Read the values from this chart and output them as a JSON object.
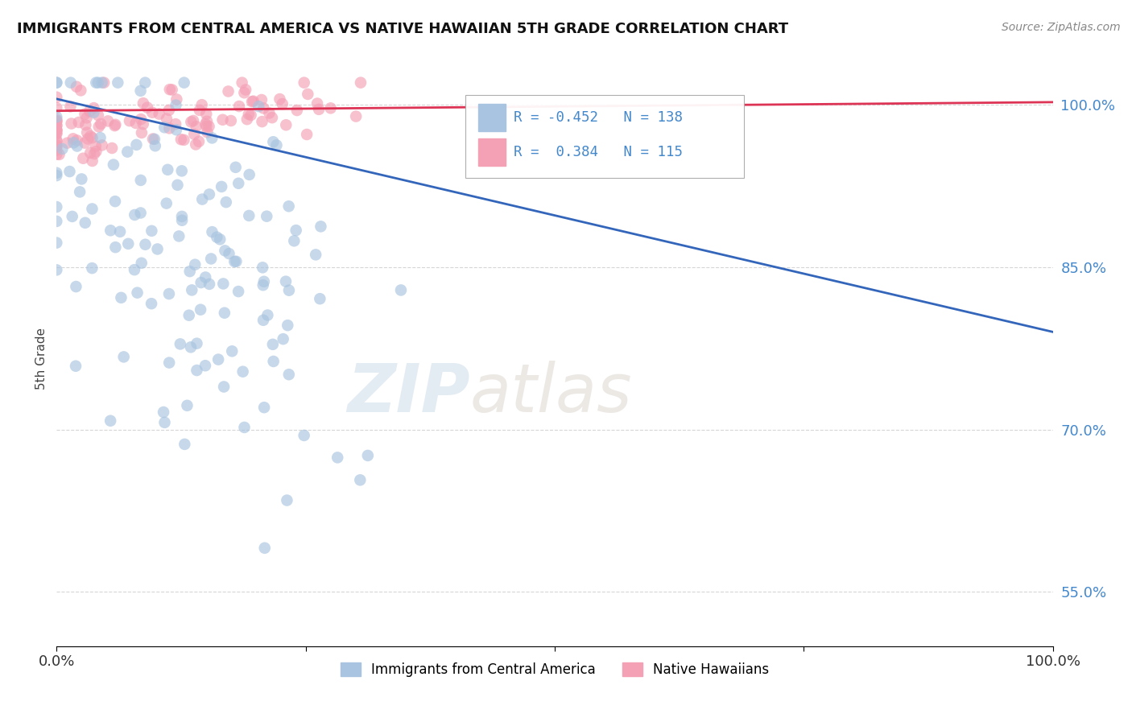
{
  "title": "IMMIGRANTS FROM CENTRAL AMERICA VS NATIVE HAWAIIAN 5TH GRADE CORRELATION CHART",
  "source_text": "Source: ZipAtlas.com",
  "ylabel": "5th Grade",
  "xlim": [
    0.0,
    1.0
  ],
  "ylim": [
    0.5,
    1.03
  ],
  "yticks": [
    0.55,
    0.7,
    0.85,
    1.0
  ],
  "ytick_labels": [
    "55.0%",
    "70.0%",
    "85.0%",
    "100.0%"
  ],
  "xticks": [
    0.0,
    0.25,
    0.5,
    0.75,
    1.0
  ],
  "xtick_labels": [
    "0.0%",
    "",
    "",
    "",
    "100.0%"
  ],
  "legend_r_blue": "-0.452",
  "legend_n_blue": "138",
  "legend_r_pink": "0.384",
  "legend_n_pink": "115",
  "blue_color": "#a8c4e0",
  "pink_color": "#f4a0b5",
  "blue_line_color": "#3366bb",
  "pink_line_color": "#dd3355",
  "watermark_zip": "ZIP",
  "watermark_atlas": "atlas",
  "background_color": "#ffffff",
  "legend_label_blue": "Immigrants from Central America",
  "legend_label_pink": "Native Hawaiians",
  "blue_seed": 12345,
  "pink_seed": 67890
}
